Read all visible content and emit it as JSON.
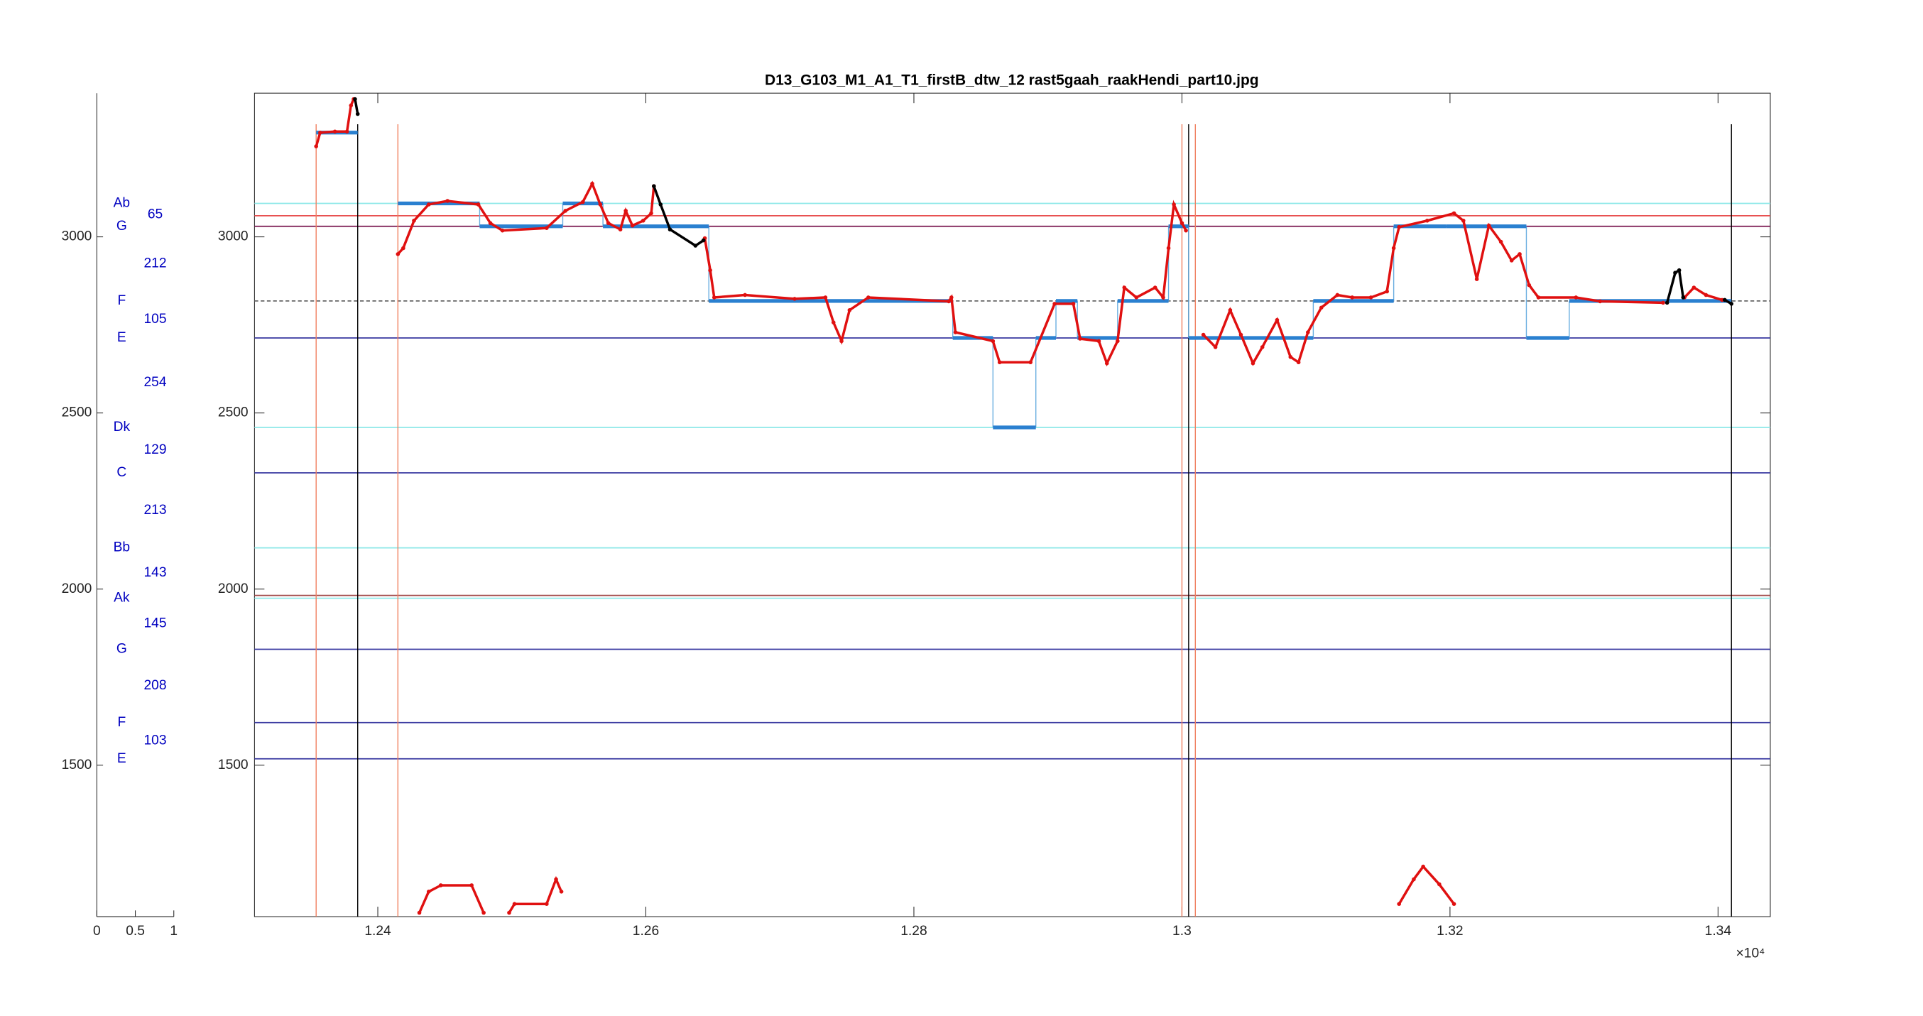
{
  "chart_data": [
    {
      "type": "note-axis",
      "xlim": [
        0,
        1
      ],
      "xticks": [
        0,
        0.5,
        1
      ],
      "ylim": [
        1070,
        3408
      ],
      "yticks": [
        1500,
        2000,
        2500,
        3000
      ],
      "color": "#0000c0",
      "notes": [
        {
          "label": "Ab",
          "value": 3095
        },
        {
          "label": "G",
          "value": 3030
        },
        {
          "label": "F",
          "value": 2818
        },
        {
          "label": "E",
          "value": 2713
        },
        {
          "label": "Dk",
          "value": 2459
        },
        {
          "label": "C",
          "value": 2330
        },
        {
          "label": "Bb",
          "value": 2117
        },
        {
          "label": "Ak",
          "value": 1974
        },
        {
          "label": "G",
          "value": 1829
        },
        {
          "label": "F",
          "value": 1621
        },
        {
          "label": "E",
          "value": 1518
        }
      ],
      "intervals": [
        65,
        212,
        105,
        254,
        129,
        213,
        143,
        145,
        208,
        103
      ]
    },
    {
      "type": "line",
      "title": "D13_G103_M1_A1_T1_firstB_dtw_12 rast5gaah_raakHendi_part10.jpg",
      "xlim": [
        12308,
        13439
      ],
      "xticks": [
        {
          "value": 12400,
          "label": "1.24"
        },
        {
          "value": 12600,
          "label": "1.26"
        },
        {
          "value": 12800,
          "label": "1.28"
        },
        {
          "value": 13000,
          "label": "1.3"
        },
        {
          "value": 13200,
          "label": "1.32"
        },
        {
          "value": 13400,
          "label": "1.34"
        }
      ],
      "x_exponent_label": "×10⁴",
      "ylim": [
        1070,
        3408
      ],
      "yticks": [
        1500,
        2000,
        2500,
        3000
      ],
      "reference_lines": [
        {
          "value": 3095,
          "color": "#8ee8e8"
        },
        {
          "value": 3060,
          "color": "#e85050"
        },
        {
          "value": 3030,
          "color": "#7a1850"
        },
        {
          "value": 2818,
          "color": "#666666",
          "dashed": true
        },
        {
          "value": 2713,
          "color": "#3838a0"
        },
        {
          "value": 2459,
          "color": "#8ee8e8"
        },
        {
          "value": 2330,
          "color": "#3838a0"
        },
        {
          "value": 2117,
          "color": "#8ee8e8"
        },
        {
          "value": 1982,
          "color": "#a04848"
        },
        {
          "value": 1974,
          "color": "#8ee8e8"
        },
        {
          "value": 1829,
          "color": "#3838a0"
        },
        {
          "value": 1621,
          "color": "#3838a0"
        },
        {
          "value": 1518,
          "color": "#3838a0"
        }
      ],
      "vlines": [
        {
          "x": 12354,
          "color": "#f08060"
        },
        {
          "x": 12385,
          "color": "#000000"
        },
        {
          "x": 12415,
          "color": "#f08060"
        },
        {
          "x": 13000,
          "color": "#f08060"
        },
        {
          "x": 13005,
          "color": "#000000"
        },
        {
          "x": 13010,
          "color": "#f08060"
        },
        {
          "x": 13410,
          "color": "#000000"
        }
      ],
      "steps": {
        "color": "#2a80d0",
        "starts": [
          12354,
          12415,
          12476,
          12538,
          12568,
          12647,
          12829,
          12859,
          12891,
          12906,
          12922,
          12952,
          12990,
          13005,
          13098,
          13158,
          13197,
          13257,
          13289
        ],
        "ends": [
          12385,
          12476,
          12538,
          12568,
          12647,
          12829,
          12859,
          12891,
          12906,
          12922,
          12952,
          12990,
          13005,
          13098,
          13158,
          13197,
          13257,
          13289,
          13410
        ],
        "values": [
          3296,
          3095,
          3030,
          3095,
          3030,
          2818,
          2713,
          2459,
          2713,
          2818,
          2713,
          2818,
          3030,
          2713,
          2818,
          3030,
          3030,
          2713,
          2818
        ]
      },
      "series": [
        {
          "color": "#e01010",
          "x": [
            12354,
            12357,
            12368,
            12377,
            12380,
            12382,
            null,
            12415,
            12419,
            12427,
            12438,
            12452,
            12475,
            12484,
            12493,
            12526,
            12540,
            12553,
            12560,
            12566,
            12572,
            12581,
            12585,
            12590,
            12598,
            12604,
            12606,
            null,
            12644,
            12648,
            12651,
            12674,
            12711,
            12734,
            12740,
            12746,
            12752,
            12766,
            12826,
            12828,
            12831,
            12859,
            12864,
            12887,
            12905,
            12919,
            12924,
            12938,
            12944,
            12952,
            12957,
            12966,
            12980,
            12986,
            12990,
            12994,
            13000,
            13003,
            null,
            13016,
            13025,
            13036,
            13044,
            13053,
            13060,
            13071,
            13081,
            13087,
            13094,
            13104,
            13116,
            13127,
            13141,
            13153,
            13158,
            13162,
            13183,
            13203,
            13210,
            13220,
            13229,
            13238,
            13246,
            13252,
            13259,
            13266,
            13294,
            13312,
            13359,
            null,
            13375,
            13382,
            13391,
            13403,
            null,
            12431,
            12438,
            12447,
            12470,
            12479,
            null,
            12498,
            12502,
            12526,
            12533,
            12537,
            null,
            13162,
            13173,
            13180,
            13192,
            13203
          ],
          "values": [
            3257,
            3296,
            3299,
            3299,
            3373,
            3391,
            null,
            2951,
            2968,
            3046,
            3092,
            3102,
            3092,
            3039,
            3018,
            3025,
            3074,
            3099,
            3151,
            3092,
            3039,
            3021,
            3074,
            3032,
            3046,
            3067,
            3144,
            null,
            2996,
            2905,
            2828,
            2835,
            2824,
            2828,
            2757,
            2704,
            2792,
            2828,
            2817,
            2828,
            2729,
            2704,
            2644,
            2644,
            2810,
            2810,
            2711,
            2704,
            2641,
            2704,
            2856,
            2828,
            2856,
            2828,
            2968,
            3092,
            3039,
            3018,
            null,
            2722,
            2687,
            2792,
            2722,
            2641,
            2687,
            2764,
            2659,
            2644,
            2729,
            2799,
            2835,
            2828,
            2828,
            2845,
            2968,
            3028,
            3046,
            3067,
            3046,
            2880,
            3032,
            2986,
            2933,
            2951,
            2863,
            2828,
            2828,
            2817,
            2813,
            null,
            2828,
            2856,
            2835,
            2821,
            null,
            1081,
            1141,
            1159,
            1159,
            1081,
            null,
            1081,
            1106,
            1106,
            1176,
            1141,
            null,
            1106,
            1176,
            1212,
            1162,
            1106
          ]
        },
        {
          "color": "#000000",
          "x": [
            12383,
            12385,
            null,
            12606,
            12611,
            12618,
            12637,
            12643,
            null,
            13362,
            13368,
            13371,
            13374,
            null,
            13405,
            13410
          ],
          "values": [
            3391,
            3349,
            null,
            3144,
            3092,
            3021,
            2975,
            2990,
            null,
            2813,
            2898,
            2905,
            2828,
            null,
            2821,
            2810
          ]
        }
      ]
    }
  ]
}
